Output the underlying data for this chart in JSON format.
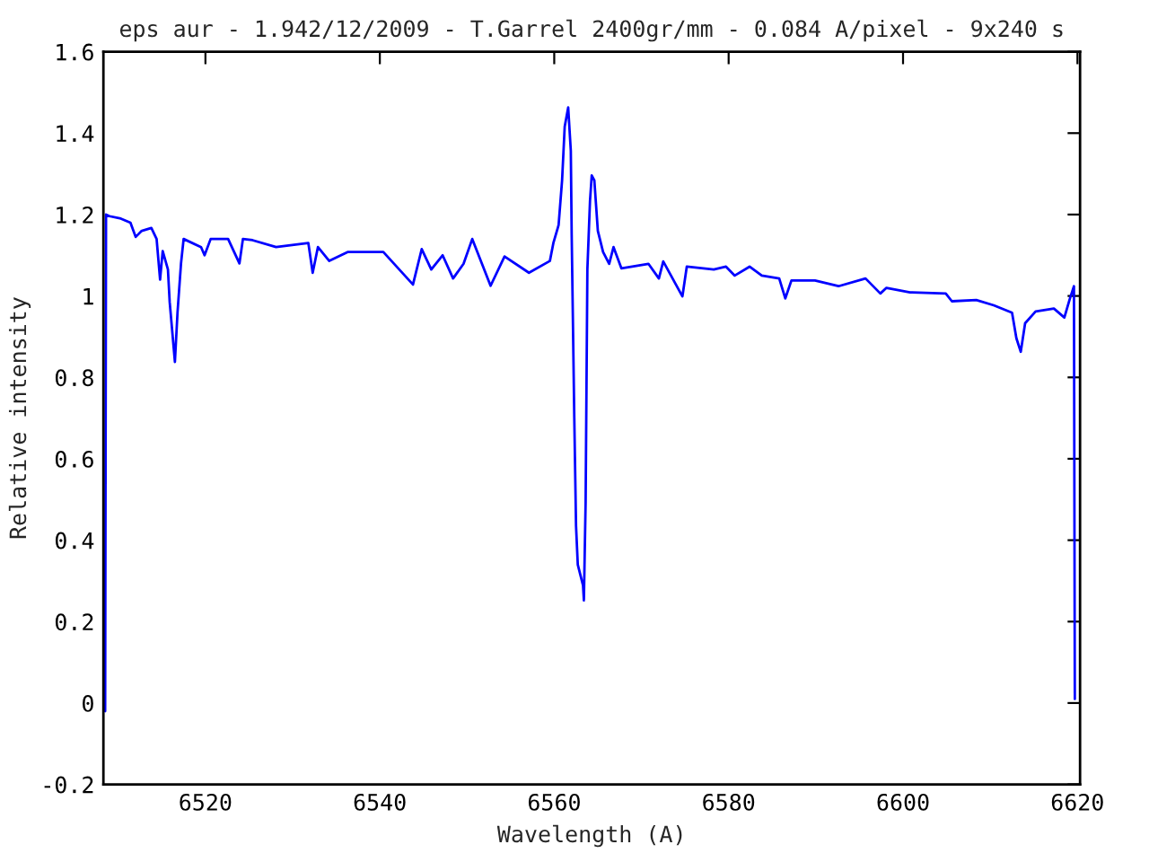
{
  "chart_data": {
    "type": "line",
    "title": "eps aur - 1.942/12/2009 - T.Garrel 2400gr/mm - 0.084 A/pixel - 9x240 s",
    "xlabel": "Wavelength (A)",
    "ylabel": "Relative intensity",
    "xlim": [
      6508.3,
      6620.3
    ],
    "ylim": [
      -0.2,
      1.6
    ],
    "xticks": [
      6520,
      6540,
      6560,
      6580,
      6600,
      6620
    ],
    "yticks": [
      -0.2,
      0,
      0.2,
      0.4,
      0.6,
      0.8,
      1,
      1.2,
      1.4,
      1.6
    ],
    "grid": false,
    "legend": false,
    "marker": "none",
    "line_style": "solid",
    "series": [
      {
        "color": "#0000ff",
        "x": [
          6508.5,
          6508.6,
          6509.0,
          6510.3,
          6511.4,
          6512.0,
          6512.7,
          6513.8,
          6514.4,
          6514.8,
          6515.1,
          6515.7,
          6515.9,
          6516.5,
          6516.8,
          6517.2,
          6517.5,
          6519.5,
          6519.9,
          6520.6,
          6522.6,
          6523.9,
          6524.3,
          6525.4,
          6528.1,
          6531.8,
          6532.3,
          6532.9,
          6534.2,
          6536.3,
          6540.4,
          6543.8,
          6544.8,
          6545.9,
          6547.2,
          6548.4,
          6549.6,
          6550.6,
          6552.7,
          6554.3,
          6557.1,
          6559.5,
          6559.9,
          6560.5,
          6560.9,
          6561.2,
          6561.6,
          6561.9,
          6562.0,
          6562.3,
          6562.5,
          6562.7,
          6563.3,
          6563.4,
          6563.6,
          6563.8,
          6564.1,
          6564.3,
          6564.6,
          6565.0,
          6565.6,
          6566.3,
          6566.8,
          6567.7,
          6570.8,
          6572.0,
          6572.5,
          6574.7,
          6575.2,
          6578.3,
          6579.7,
          6580.7,
          6582.4,
          6583.8,
          6585.8,
          6586.5,
          6587.2,
          6589.9,
          6592.6,
          6595.7,
          6597.4,
          6598.1,
          6600.8,
          6604.9,
          6605.6,
          6608.4,
          6610.4,
          6612.5,
          6613.0,
          6613.5,
          6614.0,
          6615.2,
          6617.3,
          6618.5,
          6619.1,
          6619.6,
          6619.7
        ],
        "values": [
          -0.02,
          1.2,
          1.196,
          1.19,
          1.18,
          1.145,
          1.16,
          1.167,
          1.14,
          1.04,
          1.11,
          1.065,
          0.985,
          0.838,
          0.96,
          1.08,
          1.14,
          1.12,
          1.1,
          1.14,
          1.14,
          1.08,
          1.14,
          1.137,
          1.12,
          1.13,
          1.057,
          1.12,
          1.086,
          1.108,
          1.108,
          1.028,
          1.115,
          1.065,
          1.1,
          1.043,
          1.079,
          1.14,
          1.025,
          1.097,
          1.057,
          1.086,
          1.13,
          1.174,
          1.284,
          1.416,
          1.463,
          1.357,
          1.152,
          0.7,
          0.435,
          0.34,
          0.289,
          0.252,
          0.494,
          1.065,
          1.233,
          1.296,
          1.284,
          1.16,
          1.108,
          1.079,
          1.12,
          1.068,
          1.079,
          1.043,
          1.085,
          0.999,
          1.072,
          1.065,
          1.072,
          1.05,
          1.072,
          1.05,
          1.043,
          0.994,
          1.038,
          1.038,
          1.024,
          1.043,
          1.006,
          1.02,
          1.009,
          1.006,
          0.987,
          0.99,
          0.977,
          0.959,
          0.896,
          0.863,
          0.933,
          0.962,
          0.969,
          0.947,
          0.991,
          1.024,
          0.01
        ]
      }
    ]
  }
}
